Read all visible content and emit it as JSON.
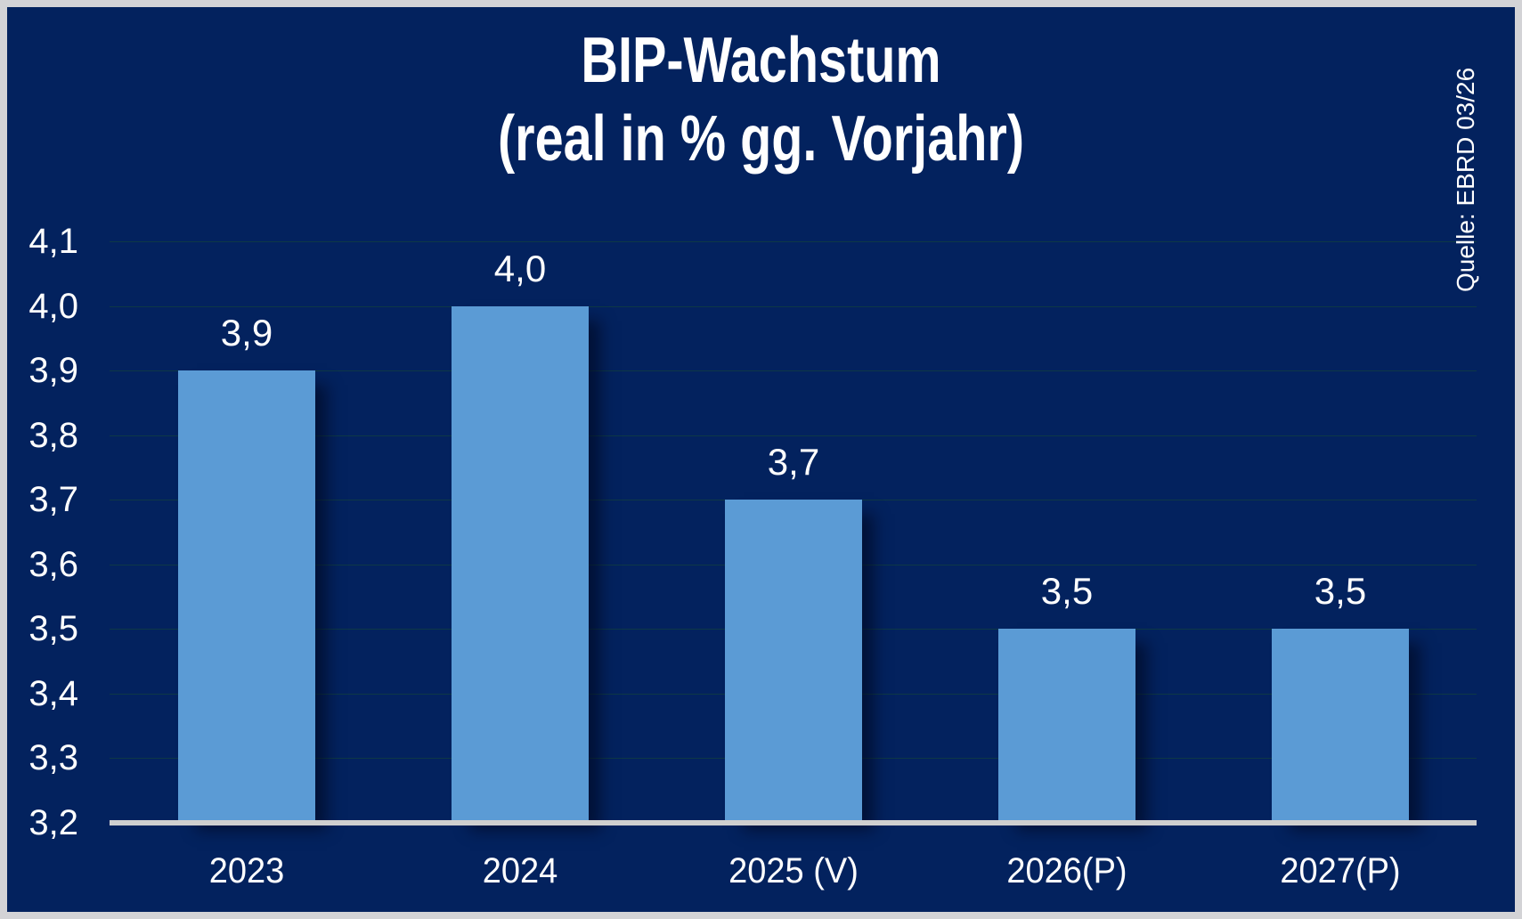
{
  "header": {
    "title_line1": "BIP-Wachstum",
    "title_line2": "(real in % gg. Vorjahr)"
  },
  "source_note": "Quelle: EBRD 03/26",
  "colors": {
    "background": "#03225e",
    "bar": "#5b9bd5",
    "text": "#ffffff",
    "gridline": "#0e3846",
    "baseline": "#cfcfcf",
    "frame": "#d3d3d6"
  },
  "chart_data": {
    "type": "bar",
    "title": "BIP-Wachstum (real in % gg. Vorjahr)",
    "categories": [
      "2023",
      "2024",
      "2025 (V)",
      "2026(P)",
      "2027(P)"
    ],
    "values": [
      3.9,
      4.0,
      3.7,
      3.5,
      3.5
    ],
    "data_labels": [
      "3,9",
      "4,0",
      "3,7",
      "3,5",
      "3,5"
    ],
    "xlabel": "",
    "ylabel": "",
    "ylim": [
      3.2,
      4.1
    ],
    "ytick_step": 0.1,
    "ytick_labels": [
      "3,2",
      "3,3",
      "3,4",
      "3,5",
      "3,6",
      "3,7",
      "3,8",
      "3,9",
      "4,0",
      "4,1"
    ],
    "grid": true,
    "legend": false,
    "decimal_separator": ",",
    "source": "Quelle: EBRD 03/26"
  }
}
